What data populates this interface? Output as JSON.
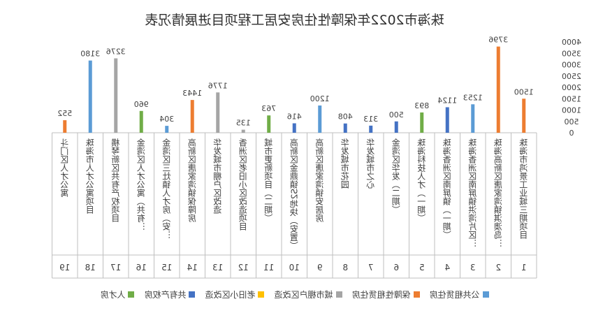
{
  "chart_data": {
    "type": "bar",
    "title": "珠海市2022年保障性住房安居工程项目进展情况表",
    "xlabel": "",
    "ylabel": "",
    "ylim": [
      0,
      4000
    ],
    "yticks": [
      0,
      500,
      1000,
      1500,
      2000,
      2500,
      3000,
      3500,
      4000
    ],
    "grid": false,
    "legend_position": "bottom",
    "mirrored": true,
    "colors": {
      "公共租赁住房": "#5B9BD5",
      "保障性租赁住房": "#ED7D31",
      "城市棚户区改造": "#A5A5A5",
      "老旧小区改造": "#FFC000",
      "共有产权房": "#4472C4",
      "人才房": "#70AD47"
    },
    "legend": [
      "公共租赁住房",
      "保障性租赁住房",
      "城市棚户区改造",
      "老旧小区改造",
      "共有产权房",
      "人才房"
    ],
    "categories": [
      {
        "index": "1",
        "name": "珠海市鸿景工业城三期项目"
      },
      {
        "index": "2",
        "name": "珠海高新区唐家湾镇淇澳岛…"
      },
      {
        "index": "3",
        "name": "珠海香洲区南屏镇洪湾片区…"
      },
      {
        "index": "4",
        "name": "珠海香洲区南屏镇（一期）"
      },
      {
        "index": "5",
        "name": "珠海科技人才（一期）"
      },
      {
        "index": "6",
        "name": "金湾区华发（二期）"
      },
      {
        "index": "7",
        "name": "华发城市之心"
      },
      {
        "index": "8",
        "name": "华发城市花园"
      },
      {
        "index": "9",
        "name": "高新区唐家湾镇安居房"
      },
      {
        "index": "10",
        "name": "高新区金鼎镇S2地块（安置）"
      },
      {
        "index": "11",
        "name": "城市更新项目（二期）"
      },
      {
        "index": "12",
        "name": "香洲区老旧小区改造项目"
      },
      {
        "index": "13",
        "name": "华发城市棚户区改造"
      },
      {
        "index": "14",
        "name": "高新区唐家湾镇保障房"
      },
      {
        "index": "15",
        "name": "金湾区三灶镇人才房（安…"
      },
      {
        "index": "16",
        "name": "金湾区人才公寓（共有…"
      },
      {
        "index": "17",
        "name": "横琴新区共有产权项目"
      },
      {
        "index": "18",
        "name": "珠海市人才公寓项目"
      },
      {
        "index": "19",
        "name": "斗门区人才公寓"
      }
    ],
    "bars": [
      {
        "category": "1",
        "series": "保障性租赁住房",
        "value": 1500,
        "label": "1500"
      },
      {
        "category": "2",
        "series": "保障性租赁住房",
        "value": 3796,
        "label": "3796"
      },
      {
        "category": "3",
        "series": "公共租赁住房",
        "value": 1253,
        "label": "1253"
      },
      {
        "category": "4",
        "series": "共有产权房",
        "value": 1124,
        "label": "1124"
      },
      {
        "category": "5",
        "series": "人才房",
        "value": 893,
        "label": "893"
      },
      {
        "category": "6",
        "series": "共有产权房",
        "value": 500,
        "label": "500"
      },
      {
        "category": "7",
        "series": "共有产权房",
        "value": 313,
        "label": "313"
      },
      {
        "category": "8",
        "series": "共有产权房",
        "value": 408,
        "label": "408"
      },
      {
        "category": "9",
        "series": "公共租赁住房",
        "value": 1200,
        "label": "1200"
      },
      {
        "category": "10",
        "series": "共有产权房",
        "value": 416,
        "label": "416"
      },
      {
        "category": "11",
        "series": "人才房",
        "value": 763,
        "label": "763"
      },
      {
        "category": "12",
        "series": "城市棚户区改造",
        "value": 135,
        "label": "135"
      },
      {
        "category": "13",
        "series": "城市棚户区改造",
        "value": 1776,
        "label": "1776"
      },
      {
        "category": "14",
        "series": "保障性租赁住房",
        "value": 1443,
        "label": "1443"
      },
      {
        "category": "15",
        "series": "公共租赁住房",
        "value": 304,
        "label": "304"
      },
      {
        "category": "16",
        "series": "人才房",
        "value": 960,
        "label": "960"
      },
      {
        "category": "17",
        "series": "城市棚户区改造",
        "value": 3276,
        "label": "3276"
      },
      {
        "category": "18",
        "series": "公共租赁住房",
        "value": 3180,
        "label": "3180"
      },
      {
        "category": "19",
        "series": "保障性租赁住房",
        "value": 552,
        "label": "552"
      }
    ]
  }
}
